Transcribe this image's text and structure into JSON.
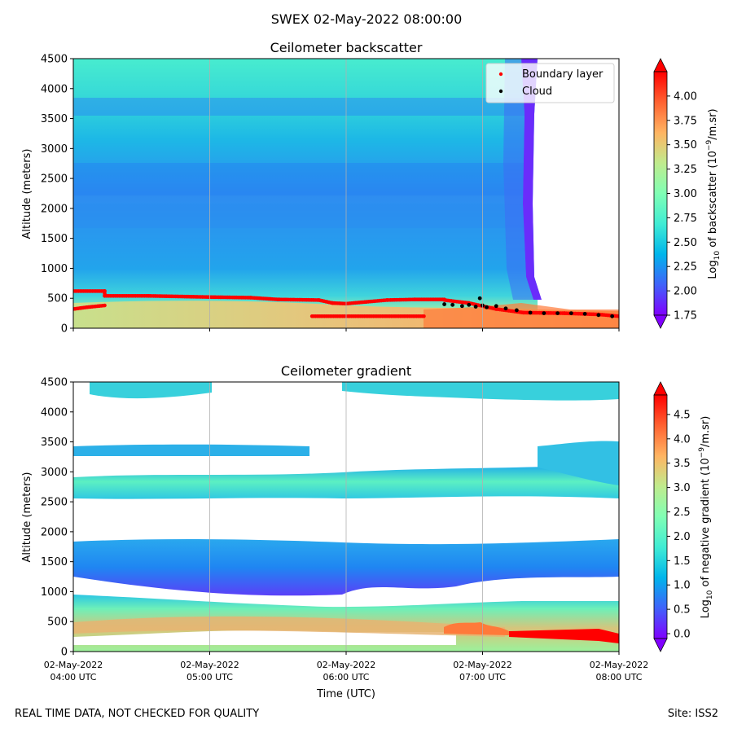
{
  "suptitle": "SWEX 02-May-2022 08:00:00",
  "footer": {
    "left": "REAL TIME DATA, NOT CHECKED FOR QUALITY",
    "right": "Site: ISS2"
  },
  "colors": {
    "rainbow": [
      "#8000ff",
      "#4062fa",
      "#00b5eb",
      "#40ecd4",
      "#80ffb4",
      "#c0eb8d",
      "#ffb462",
      "#ff6231",
      "#ff0000"
    ],
    "boundary_layer": "#ff0000",
    "cloud": "#000000",
    "grid": "#b0b0b0"
  },
  "chart_data": [
    {
      "type": "heatmap",
      "title": "Ceilometer backscatter",
      "xlabel": "",
      "ylabel": "Altitude (meters)",
      "xlim": [
        4.0,
        8.0
      ],
      "ylim": [
        0,
        4500
      ],
      "yticks": [
        "0",
        "500",
        "1000",
        "1500",
        "2000",
        "2500",
        "3000",
        "3500",
        "4000",
        "4500"
      ],
      "xticks": [
        4.0,
        5.0,
        6.0,
        7.0,
        8.0
      ],
      "grid": "vertical",
      "colorbar": {
        "label_pre": "Log",
        "label_sub": "10",
        "label_mid": " of backscatter (10",
        "label_sup": "−9",
        "label_post": "/m.sr)",
        "ticks": [
          "1.75",
          "2.00",
          "2.25",
          "2.50",
          "2.75",
          "3.00",
          "3.25",
          "3.50",
          "3.75",
          "4.00"
        ],
        "range": [
          1.75,
          4.25
        ]
      },
      "legend": {
        "placement": "top-right",
        "entries": [
          {
            "label": "Boundary layer",
            "color": "#ff0000"
          },
          {
            "label": "Cloud",
            "color": "#000000"
          }
        ]
      },
      "boundary_layer_series": [
        {
          "name": "upper",
          "points": [
            [
              4.0,
              620
            ],
            [
              4.23,
              620
            ],
            [
              4.23,
              540
            ],
            [
              4.55,
              540
            ],
            [
              5.0,
              520
            ],
            [
              5.3,
              510
            ],
            [
              5.5,
              480
            ],
            [
              5.8,
              470
            ],
            [
              5.9,
              420
            ],
            [
              6.0,
              410
            ],
            [
              6.15,
              440
            ],
            [
              6.3,
              470
            ],
            [
              6.5,
              480
            ],
            [
              6.72,
              480
            ]
          ]
        },
        {
          "name": "lower",
          "points": [
            [
              4.0,
              320
            ],
            [
              4.1,
              350
            ],
            [
              4.23,
              380
            ]
          ]
        },
        {
          "name": "low-band",
          "points": [
            [
              5.75,
              200
            ],
            [
              6.57,
              200
            ]
          ]
        },
        {
          "name": "tail",
          "points": [
            [
              6.72,
              470
            ],
            [
              6.9,
              420
            ],
            [
              7.1,
              320
            ],
            [
              7.3,
              260
            ],
            [
              7.6,
              250
            ],
            [
              7.85,
              230
            ],
            [
              8.0,
              200
            ]
          ]
        }
      ],
      "cloud_series": [
        [
          6.72,
          400
        ],
        [
          6.78,
          390
        ],
        [
          6.85,
          370
        ],
        [
          6.9,
          390
        ],
        [
          6.95,
          360
        ],
        [
          7.0,
          380
        ],
        [
          7.03,
          350
        ],
        [
          7.1,
          370
        ],
        [
          7.17,
          330
        ],
        [
          7.25,
          300
        ],
        [
          7.35,
          260
        ],
        [
          7.45,
          250
        ],
        [
          7.55,
          250
        ],
        [
          7.65,
          250
        ],
        [
          7.75,
          240
        ],
        [
          7.85,
          220
        ],
        [
          7.95,
          200
        ],
        [
          6.98,
          500
        ]
      ]
    },
    {
      "type": "heatmap",
      "title": "Ceilometer gradient",
      "xlabel": "Time (UTC)",
      "ylabel": "Altitude (meters)",
      "xlim": [
        4.0,
        8.0
      ],
      "ylim": [
        0,
        4500
      ],
      "yticks": [
        "0",
        "500",
        "1000",
        "1500",
        "2000",
        "2500",
        "3000",
        "3500",
        "4000",
        "4500"
      ],
      "xtick_labels": [
        {
          "date": "02-May-2022",
          "time": "04:00 UTC"
        },
        {
          "date": "02-May-2022",
          "time": "05:00 UTC"
        },
        {
          "date": "02-May-2022",
          "time": "06:00 UTC"
        },
        {
          "date": "02-May-2022",
          "time": "07:00 UTC"
        },
        {
          "date": "02-May-2022",
          "time": "08:00 UTC"
        }
      ],
      "grid": "vertical",
      "colorbar": {
        "label_pre": "Log",
        "label_sub": "10",
        "label_mid": " of negative gradient (10",
        "label_sup": "−9",
        "label_post": "/m.sr)",
        "ticks": [
          "0.0",
          "0.5",
          "1.0",
          "1.5",
          "2.0",
          "2.5",
          "3.0",
          "3.5",
          "4.0",
          "4.5"
        ],
        "range": [
          -0.1,
          4.9
        ]
      },
      "bands": [
        {
          "from": [
            4.0,
            900
          ],
          "to": [
            8.0,
            950
          ],
          "low": [
            4.0,
            80
          ],
          "value": 2.6
        },
        {
          "from": [
            4.0,
            1850
          ],
          "to": [
            8.0,
            1800
          ],
          "low": [
            4.0,
            1250
          ],
          "value": 1.2
        },
        {
          "from": [
            4.0,
            2900
          ],
          "to": [
            8.0,
            3000
          ],
          "low": [
            4.0,
            2600
          ],
          "value": 1.8
        },
        {
          "from": [
            4.0,
            3450
          ],
          "to": [
            8.0,
            3500
          ],
          "low": [
            4.0,
            3300
          ],
          "value": 1.4
        },
        {
          "from": [
            4.0,
            4500
          ],
          "to": [
            8.0,
            4500
          ],
          "low": [
            4.0,
            4250
          ],
          "value": 1.6
        },
        {
          "from": [
            7.25,
            350
          ],
          "to": [
            8.0,
            350
          ],
          "low": [
            7.25,
            150
          ],
          "value": 4.6
        }
      ]
    }
  ]
}
